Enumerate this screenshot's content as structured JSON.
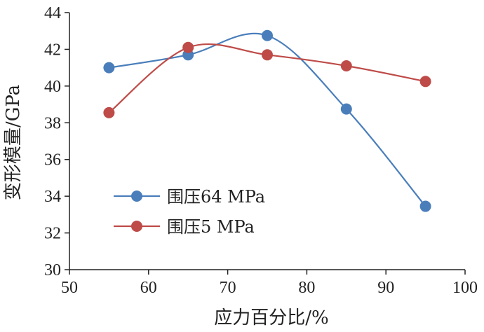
{
  "chart_data": {
    "type": "line",
    "smooth": true,
    "xlabel": "应力百分比/%",
    "ylabel": "变形模量/GPa",
    "xlim": [
      50,
      100
    ],
    "ylim": [
      30,
      44
    ],
    "xticks": [
      50,
      60,
      70,
      80,
      90,
      100
    ],
    "yticks": [
      30,
      32,
      34,
      36,
      38,
      40,
      42,
      44
    ],
    "xtick_labels": [
      "50",
      "60",
      "70",
      "80",
      "90",
      "100"
    ],
    "ytick_labels": [
      "30",
      "32",
      "34",
      "36",
      "38",
      "40",
      "42",
      "44"
    ],
    "grid": false,
    "legend_position": "bottom-left",
    "series": [
      {
        "name": "围压64 MPa",
        "color": "#4A7EBB",
        "x": [
          55,
          65,
          75,
          85,
          95
        ],
        "y": [
          41.0,
          41.7,
          42.75,
          38.75,
          33.45
        ]
      },
      {
        "name": "围压5 MPa",
        "color": "#BE4B48",
        "x": [
          55,
          65,
          75,
          85,
          95
        ],
        "y": [
          38.55,
          42.1,
          41.7,
          41.1,
          40.25
        ]
      }
    ]
  }
}
